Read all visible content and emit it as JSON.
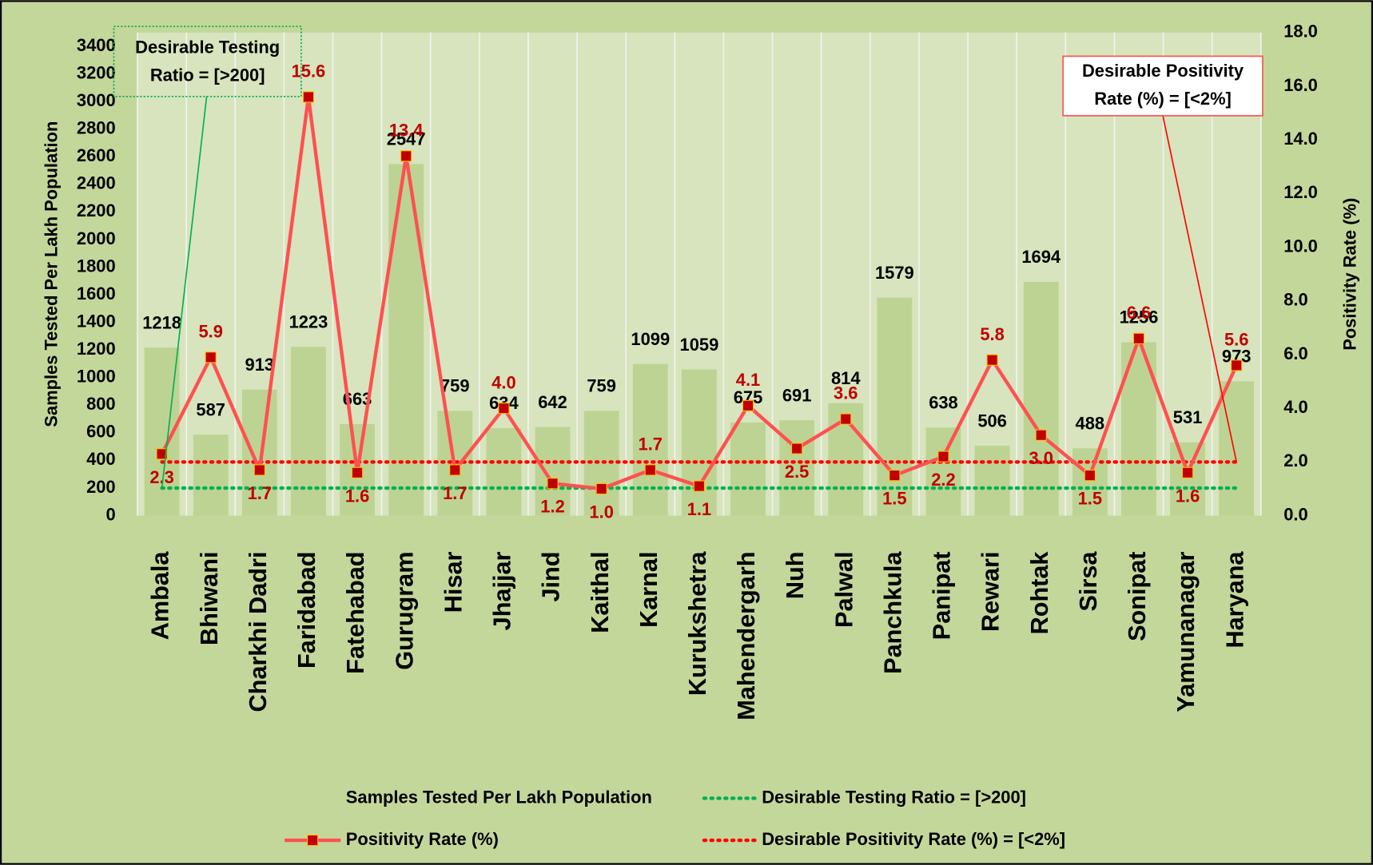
{
  "chart_data": {
    "type": "bar_line",
    "categories": [
      "Ambala",
      "Bhiwani",
      "Charkhi Dadri",
      "Faridabad",
      "Fatehabad",
      "Gurugram",
      "Hisar",
      "Jhajjar",
      "Jind",
      "Kaithal",
      "Karnal",
      "Kurukshetra",
      "Mahendergarh",
      "Nuh",
      "Palwal",
      "Panchkula",
      "Panipat",
      "Rewari",
      "Rohtak",
      "Sirsa",
      "Sonipat",
      "Yamunanagar",
      "Haryana"
    ],
    "series": [
      {
        "name": "Samples Tested Per Lakh Population",
        "type": "bar",
        "color": "#bdd393",
        "values": [
          1218,
          587,
          913,
          1223,
          663,
          2547,
          759,
          634,
          642,
          759,
          1099,
          1059,
          675,
          691,
          814,
          1579,
          638,
          506,
          1694,
          488,
          1256,
          531,
          973
        ]
      },
      {
        "name": "Desirable Testing Ratio = [>200]",
        "type": "dotted",
        "color": "#00b050",
        "values": [
          200,
          200,
          200,
          200,
          200,
          200,
          200,
          200,
          200,
          200,
          200,
          200,
          200,
          200,
          200,
          200,
          200,
          200,
          200,
          200,
          200,
          200,
          200
        ]
      },
      {
        "name": "Positivity Rate (%)",
        "type": "line",
        "axis": "y2",
        "color": "#ff5050",
        "marker_color": "#c00000",
        "values": [
          2.3,
          5.9,
          1.7,
          15.6,
          1.6,
          13.4,
          1.7,
          4.0,
          1.2,
          1.0,
          1.7,
          1.1,
          4.1,
          2.5,
          3.6,
          1.5,
          2.2,
          5.8,
          3.0,
          1.5,
          6.6,
          1.6,
          5.6
        ],
        "value_labels": [
          "2.3",
          "5.9",
          "1.7",
          "15.6",
          "1.6",
          "13.4",
          "1.7",
          "4.0",
          "1.2",
          "1.0",
          "1.7",
          "1.1",
          "4.1",
          "2.5",
          "3.6",
          "1.5",
          "2.2",
          "5.8",
          "3.0",
          "1.5",
          "6.6",
          "1.6",
          "5.6"
        ]
      },
      {
        "name": "Desirable Positivity Rate (%) = [<2%]",
        "type": "dotted",
        "axis": "y2",
        "color": "#ff0000",
        "values": [
          2,
          2,
          2,
          2,
          2,
          2,
          2,
          2,
          2,
          2,
          2,
          2,
          2,
          2,
          2,
          2,
          2,
          2,
          2,
          2,
          2,
          2,
          2
        ]
      }
    ],
    "ylabel": "Samples Tested Per Lakh Population",
    "y2label": "Positivity Rate (%)",
    "ylim": [
      0,
      3500
    ],
    "yticks": [
      0,
      200,
      400,
      600,
      800,
      1000,
      1200,
      1400,
      1600,
      1800,
      2000,
      2200,
      2400,
      2600,
      2800,
      3000,
      3200,
      3400
    ],
    "y2lim": [
      0,
      18
    ],
    "y2ticks": [
      {
        "value": 0,
        "label": "0.0"
      },
      {
        "value": 2,
        "label": "2.0"
      },
      {
        "value": 4,
        "label": "4.0"
      },
      {
        "value": 6,
        "label": "6.0"
      },
      {
        "value": 8,
        "label": "8.0"
      },
      {
        "value": 10,
        "label": "10.0"
      },
      {
        "value": 12,
        "label": "12.0"
      },
      {
        "value": 14,
        "label": "14.0"
      },
      {
        "value": 16,
        "label": "16.0"
      },
      {
        "value": 18,
        "label": "18.0"
      }
    ],
    "annotations": [
      {
        "lines": [
          "Desirable Testing",
          "Ratio = [>200]"
        ]
      },
      {
        "lines": [
          "Desirable Positivity",
          "Rate (%) = [<2%]"
        ]
      }
    ]
  }
}
